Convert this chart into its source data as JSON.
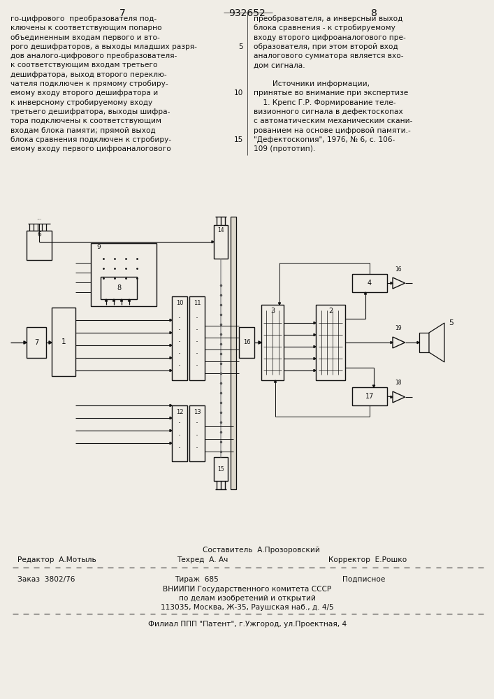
{
  "page_number_left": "7",
  "page_number_center": "932652",
  "page_number_right": "8",
  "col_left_text": [
    "го-цифрового  преобразователя под-",
    "ключены к соответствующим попарно",
    "объединенным входам первого и вто-",
    "рого дешифраторов, а выходы младших разря-",
    "дов аналого-цифрового преобразователя-",
    "к соответствующим входам третьего",
    "дешифратора, выход второго переклю-",
    "чателя подключен к прямому стробиру-",
    "емому входу второго дешифратора и",
    "к инверсному стробируемому входу",
    "третьего дешифратора, выходы шифра-",
    "тора подключены к соответствующим",
    "входам блока памяти; прямой выход",
    "блока сравнения подключен к стробиру-",
    "емому входу первого цифроаналогового"
  ],
  "col_right_text": [
    "преобразователя, а инверсный выход",
    "блока сравнения - к стробируемому",
    "входу второго цифроаналогового пре-",
    "образователя, при этом второй вход",
    "аналогового сумматора является вхо-",
    "дом сигнала.",
    "",
    "        Источники информации,",
    "принятые во внимание при экспертизе",
    "    1. Крепс Г.Р. Формирование теле-",
    "визионного сигнала в дефектоскопах",
    "с автоматическим механическим скани-",
    "рованием на основе цифровой памяти.-",
    "\"Дефектоскопия\", 1976, № 6, с. 106-",
    "109 (прототип)."
  ],
  "line_num_rows": {
    "3": "5",
    "8": "10",
    "13": "15"
  },
  "footer_editor": "Редактор  А.Мотыль",
  "footer_composer": "Составитель  А.Прозоровский",
  "footer_tech": "Техред  А. Ач",
  "footer_corrector": "Корректор  Е.Рошко",
  "footer_order": "Заказ  3802/76",
  "footer_edition": "Тираж  685",
  "footer_subscription": "Подписное",
  "footer_org1": "ВНИИПИ Государственного комитета СССР",
  "footer_org2": "по делам изобретений и открытий",
  "footer_address": "113035, Москва, Ж-35, Раушская наб., д. 4/5",
  "footer_branch": "Филиал ППП \"Патент\", г.Ужгород, ул.Проектная, 4",
  "bg_color": "#f0ede6",
  "text_color": "#111111"
}
